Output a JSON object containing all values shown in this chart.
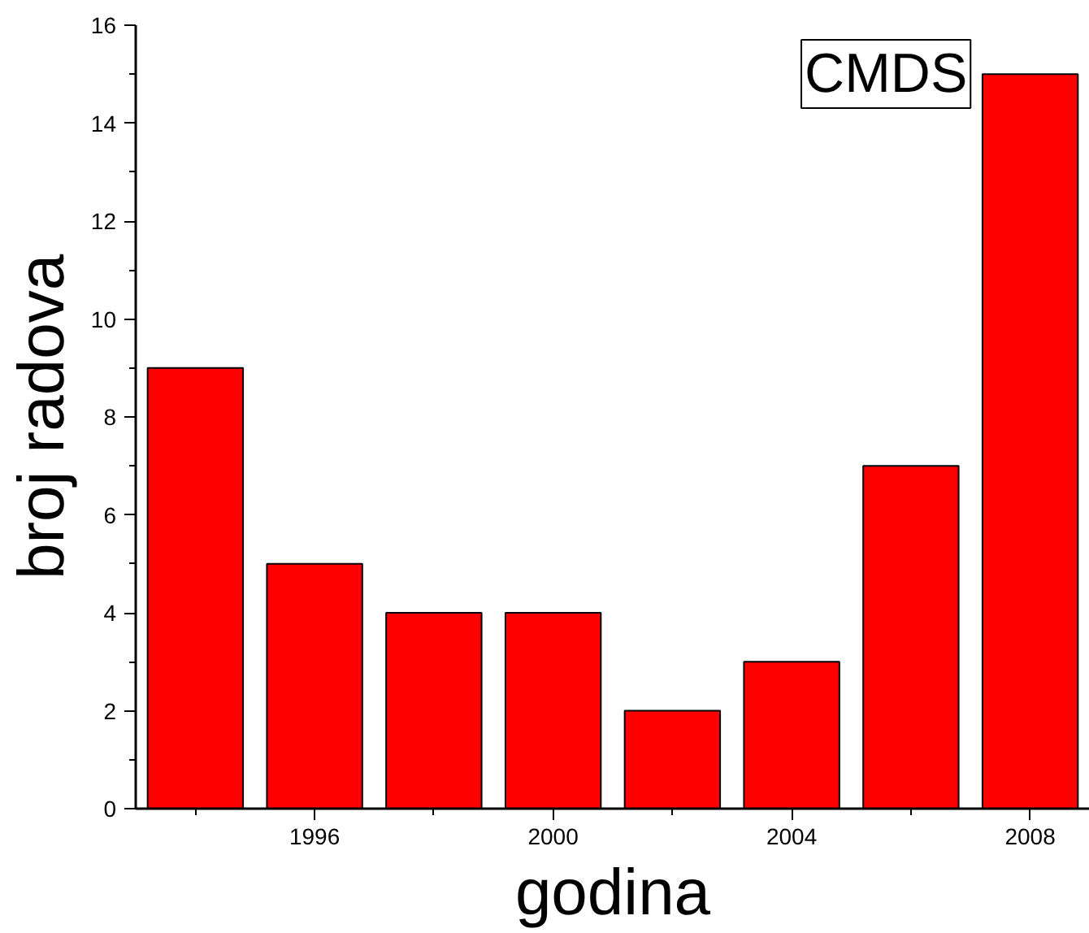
{
  "chart_data": {
    "type": "bar",
    "xlabel": "godina",
    "ylabel": "broj radova",
    "annotations": [
      "CMDS"
    ],
    "x": [
      1994,
      1996,
      1998,
      2000,
      2002,
      2004,
      2006,
      2008
    ],
    "values": [
      9,
      5,
      4,
      4,
      2,
      3,
      7,
      15
    ],
    "color": "#ff0000",
    "xlim": [
      1993,
      2009
    ],
    "xticks": [
      {
        "value": 1994,
        "label": null
      },
      1996,
      {
        "value": 1998,
        "label": null
      },
      2000,
      {
        "value": 2002,
        "label": null
      },
      2004,
      {
        "value": 2006,
        "label": null
      },
      2008
    ],
    "ylim": [
      0,
      16
    ],
    "yticks": [
      0,
      {
        "value": 1,
        "label": null
      },
      2,
      {
        "value": 3,
        "label": null
      },
      4,
      {
        "value": 5,
        "label": null
      },
      6,
      {
        "value": 7,
        "label": null
      },
      8,
      {
        "value": 9,
        "label": null
      },
      10,
      {
        "value": 11,
        "label": null
      },
      12,
      {
        "value": 13,
        "label": null
      },
      14,
      {
        "value": 15,
        "label": null
      },
      16
    ],
    "grid": false
  }
}
